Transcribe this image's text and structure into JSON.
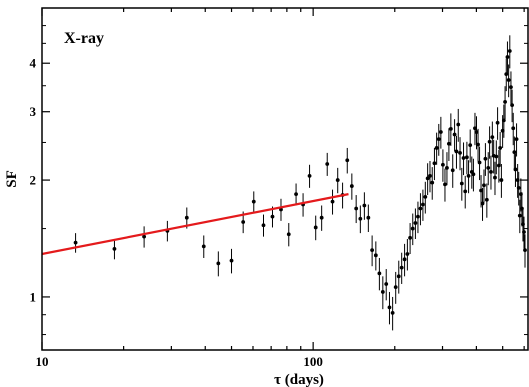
{
  "chart_data": {
    "type": "scatter",
    "title": "",
    "panel_label": "X-ray",
    "xlabel": "τ (days)",
    "ylabel": "SF",
    "x_scale": "log",
    "y_scale": "log",
    "xlim": [
      10,
      620
    ],
    "ylim": [
      0.73,
      5.55
    ],
    "x_ticks": [
      10,
      100
    ],
    "x_tick_labels": [
      "10",
      "100"
    ],
    "y_ticks": [
      1,
      2,
      3,
      4
    ],
    "y_tick_labels": [
      "1",
      "2",
      "3",
      "4"
    ],
    "grid": false,
    "colors": {
      "points": "#000000",
      "fit_line": "#e41a1c",
      "axes": "#000000"
    },
    "series": [
      {
        "type": "scatter_errorbars",
        "x": [
          13.3,
          18.5,
          23.8,
          29,
          34.2,
          39.5,
          44.7,
          50,
          55.2,
          60.4,
          65.6,
          70.8,
          76.1,
          81.3,
          86.5,
          91.8,
          97,
          102.2,
          107.5,
          112.7,
          117.9,
          123.2,
          128.4,
          133.6,
          138.9,
          144.1,
          149.3,
          154.5,
          159.8,
          165,
          170.3,
          175.5,
          180.7,
          186,
          191.2,
          196.4,
          201.6,
          206.9,
          212.1,
          217.4,
          222.6,
          227.8,
          233,
          238.3,
          243.5,
          248.7,
          254,
          259.2,
          264.4,
          269.7,
          274.9,
          280.1,
          285.4,
          290.6,
          295.8,
          301,
          306.3,
          311.5,
          316.7,
          322,
          327.2,
          332.4,
          337.7,
          342.9,
          348.1,
          353.4,
          358.6,
          363.8,
          369,
          374.3,
          379.5,
          384.7,
          390,
          395.2,
          400.4,
          405.7,
          410.9,
          416.1,
          421.4,
          426.6,
          431.8,
          437.1,
          442.3,
          447.5,
          452.7,
          458,
          463.2,
          468.4,
          473.7,
          478.9,
          484.1,
          489.4,
          494.6,
          499.8,
          505,
          510.3,
          515.5,
          520.7,
          526,
          531.2,
          536.4,
          541.7,
          546.9,
          552.1,
          557.3,
          562.6,
          567.8,
          573,
          578.3,
          583.5,
          588.7,
          594,
          599.2,
          604.4
        ],
        "y": [
          1.38,
          1.33,
          1.43,
          1.48,
          1.6,
          1.35,
          1.22,
          1.24,
          1.56,
          1.76,
          1.53,
          1.61,
          1.68,
          1.45,
          1.84,
          1.73,
          2.05,
          1.51,
          1.6,
          2.2,
          1.76,
          2.0,
          1.83,
          2.25,
          1.93,
          1.69,
          1.59,
          1.72,
          1.6,
          1.32,
          1.28,
          1.15,
          1.03,
          1.08,
          0.94,
          0.91,
          1.06,
          1.13,
          1.19,
          1.25,
          1.29,
          1.42,
          1.5,
          1.55,
          1.61,
          1.69,
          1.73,
          1.81,
          2.02,
          2.05,
          1.97,
          2.21,
          2.42,
          2.55,
          2.66,
          2.19,
          1.95,
          2.15,
          2.48,
          2.71,
          2.12,
          2.62,
          2.37,
          2.78,
          2.35,
          1.96,
          2.28,
          1.87,
          2.29,
          2.05,
          2.46,
          2.1,
          2.07,
          2.72,
          2.66,
          2.47,
          2.22,
          1.88,
          1.74,
          1.94,
          2.27,
          1.78,
          2.15,
          2.51,
          2.1,
          2.58,
          2.31,
          2.03,
          2.3,
          2.81,
          2.18,
          2.42,
          2.0,
          2.68,
          2.85,
          3.18,
          3.75,
          4.15,
          3.62,
          4.3,
          3.47,
          3.12,
          2.72,
          2.36,
          2.13,
          2.55,
          2.0,
          1.91,
          1.62,
          1.84,
          1.69,
          1.54,
          1.47,
          1.32
        ],
        "yerr": [
          0.08,
          0.08,
          0.09,
          0.09,
          0.1,
          0.09,
          0.09,
          0.09,
          0.1,
          0.11,
          0.1,
          0.1,
          0.11,
          0.1,
          0.12,
          0.12,
          0.14,
          0.11,
          0.12,
          0.15,
          0.13,
          0.15,
          0.14,
          0.17,
          0.15,
          0.14,
          0.13,
          0.14,
          0.13,
          0.12,
          0.11,
          0.11,
          0.1,
          0.1,
          0.09,
          0.09,
          0.1,
          0.11,
          0.11,
          0.12,
          0.12,
          0.13,
          0.14,
          0.14,
          0.15,
          0.16,
          0.16,
          0.17,
          0.19,
          0.19,
          0.19,
          0.21,
          0.23,
          0.24,
          0.25,
          0.21,
          0.19,
          0.21,
          0.24,
          0.26,
          0.21,
          0.25,
          0.23,
          0.27,
          0.23,
          0.19,
          0.22,
          0.18,
          0.22,
          0.2,
          0.24,
          0.2,
          0.2,
          0.26,
          0.26,
          0.24,
          0.22,
          0.18,
          0.17,
          0.19,
          0.22,
          0.18,
          0.21,
          0.24,
          0.21,
          0.25,
          0.23,
          0.2,
          0.23,
          0.27,
          0.21,
          0.24,
          0.2,
          0.26,
          0.28,
          0.31,
          0.36,
          0.4,
          0.35,
          0.42,
          0.34,
          0.3,
          0.26,
          0.23,
          0.21,
          0.25,
          0.2,
          0.19,
          0.16,
          0.18,
          0.17,
          0.15,
          0.14,
          0.13
        ]
      },
      {
        "type": "fit_line",
        "x": [
          10,
          135
        ],
        "y": [
          1.29,
          1.84
        ]
      }
    ]
  }
}
